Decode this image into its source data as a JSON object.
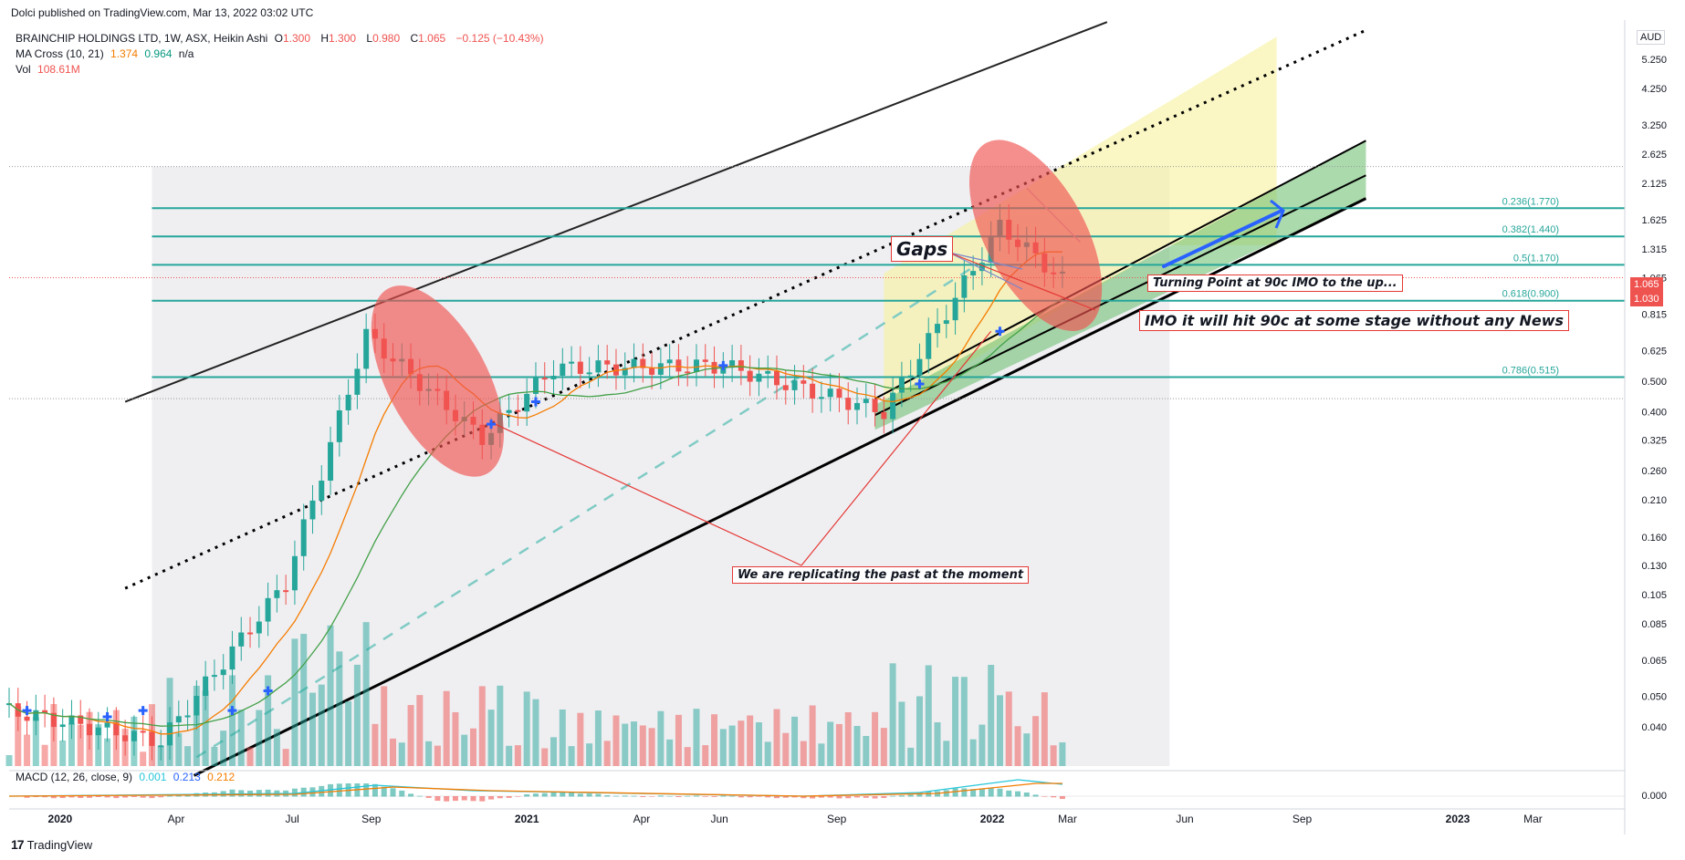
{
  "publisher_line": "Dolci published on TradingView.com, Mar 13, 2022 03:02 UTC",
  "symbol": {
    "name": "BRAINCHIP HOLDINGS LTD, 1W, ASX, Heikin Ashi",
    "open_label": "O",
    "open": "1.300",
    "high_label": "H",
    "high": "1.300",
    "low_label": "L",
    "low": "0.980",
    "close_label": "C",
    "close": "1.065",
    "change": "−0.125 (−10.43%)"
  },
  "ma_cross": {
    "label": "MA Cross (10, 21)",
    "fast": "1.374",
    "slow": "0.964",
    "extra": "n/a"
  },
  "vol": {
    "label": "Vol",
    "value": "108.61M"
  },
  "macd": {
    "label": "MACD (12, 26, close, 9)",
    "hist": "0.001",
    "macd": "0.213",
    "signal": "0.212"
  },
  "currency": "AUD",
  "current_price": "1.065",
  "current_price_2": "1.030",
  "brand": "TradingView",
  "annotations": {
    "gaps": "Gaps",
    "turning_point": "Turning Point at 90c IMO to the up...",
    "imo_90c": "IMO it will hit 90c at some stage without any News",
    "replicating": "We are replicating the past at the moment"
  },
  "colors": {
    "up": "#26a69a",
    "down": "#ef5350",
    "fib": "#26a69a",
    "ma_fast": "#f57c00",
    "ma_slow": "#43a047",
    "ellipse": "#ef5350",
    "grey_zone": "#e9eaee",
    "yellow_zone": "#f7f19c",
    "green_channel": "#66bb6a"
  },
  "chart_data": {
    "type": "candlestick",
    "scale": "log",
    "ylim": [
      0.03,
      7.0
    ],
    "y_ticks": [
      5.25,
      4.25,
      3.25,
      2.625,
      2.125,
      1.625,
      1.315,
      1.065,
      0.815,
      0.625,
      0.5,
      0.4,
      0.325,
      0.26,
      0.21,
      0.16,
      0.13,
      0.105,
      0.085,
      0.065,
      0.05,
      0.04
    ],
    "y_tick_labels": [
      "5.250",
      "4.250",
      "3.250",
      "2.625",
      "2.125",
      "1.625",
      "1.315",
      "1.065",
      "0.815",
      "0.625",
      "0.500",
      "0.400",
      "0.325",
      "0.260",
      "0.210",
      "0.160",
      "0.130",
      "0.105",
      "0.085",
      "0.065",
      "0.050",
      "0.040"
    ],
    "x_ticks": [
      {
        "label": "2020",
        "date": "2020-01-01"
      },
      {
        "label": "Apr",
        "date": "2020-04-01"
      },
      {
        "label": "Jul",
        "date": "2020-07-01"
      },
      {
        "label": "Sep",
        "date": "2020-09-01"
      },
      {
        "label": "2021",
        "date": "2021-01-01"
      },
      {
        "label": "Apr",
        "date": "2021-04-01"
      },
      {
        "label": "Jun",
        "date": "2021-06-01"
      },
      {
        "label": "Sep",
        "date": "2021-09-01"
      },
      {
        "label": "2022",
        "date": "2022-01-01"
      },
      {
        "label": "Mar",
        "date": "2022-03-01"
      },
      {
        "label": "Jun",
        "date": "2022-06-01"
      },
      {
        "label": "Sep",
        "date": "2022-09-01"
      },
      {
        "label": "2023",
        "date": "2023-01-01"
      },
      {
        "label": "Mar",
        "date": "2023-03-01"
      }
    ],
    "x_range": [
      "2019-11-22",
      "2023-05-12"
    ],
    "fib_levels": [
      {
        "label": "0.236(1.770)",
        "value": 1.77
      },
      {
        "label": "0.382(1.440)",
        "value": 1.44
      },
      {
        "label": "0.5(1.170)",
        "value": 1.17
      },
      {
        "label": "0.618(0.900)",
        "value": 0.9
      },
      {
        "label": "0.786(0.515)",
        "value": 0.515
      }
    ],
    "key_prices": [
      {
        "date": "2019-11-22",
        "price": 0.045
      },
      {
        "date": "2020-03-20",
        "price": 0.036
      },
      {
        "date": "2020-06-26",
        "price": 0.115
      },
      {
        "date": "2020-08-28",
        "price": 0.7
      },
      {
        "date": "2020-11-27",
        "price": 0.33
      },
      {
        "date": "2021-01-22",
        "price": 0.55
      },
      {
        "date": "2021-06-04",
        "price": 0.56
      },
      {
        "date": "2021-10-08",
        "price": 0.4
      },
      {
        "date": "2022-01-07",
        "price": 1.55
      },
      {
        "date": "2022-02-25",
        "price": 1.05
      }
    ]
  }
}
